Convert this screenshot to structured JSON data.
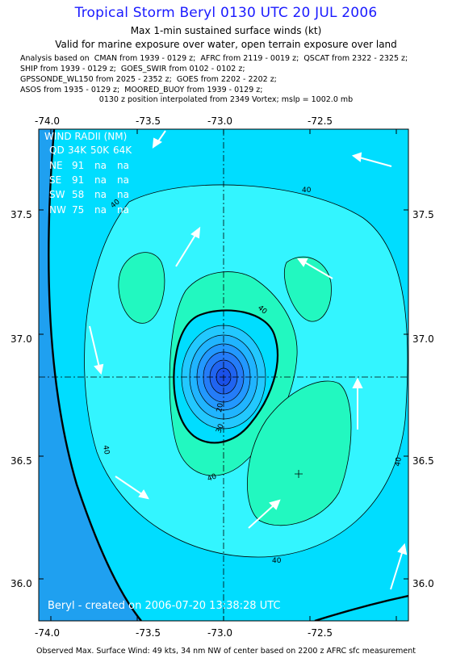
{
  "header": {
    "title": "Tropical Storm Beryl 0130 UTC 20 JUL 2006",
    "subtitle": "Max 1-min sustained surface winds (kt)",
    "valid_note": "Valid for marine exposure over water, open terrain exposure over land",
    "analysis_lines": [
      "Analysis based on  CMAN from 1939 - 0129 z;  AFRC from 2119 - 0019 z;  QSCAT from 2322 - 2325 z;",
      "SHIP from 1939 - 0129 z;  GOES_SWIR from 0102 - 0102 z;",
      "GPSSONDE_WL150 from 2025 - 2352 z;  GOES from 2202 - 2202 z;",
      "ASOS from 1935 - 0129 z;  MOORED_BUOY from 1939 - 0129 z;"
    ],
    "position_note": "0130 z position interpolated from 2349 Vortex; mslp = 1002.0 mb"
  },
  "map": {
    "x_ticks": [
      "-74.0",
      "-73.5",
      "-73.0",
      "-72.5"
    ],
    "y_ticks": [
      "37.5",
      "37.0",
      "36.5",
      "36.0"
    ],
    "wind_radii": {
      "title": "WIND RADII (NM)",
      "header": [
        "QD",
        "34K",
        "50K",
        "64K"
      ],
      "rows": [
        [
          "NE",
          "91",
          "na",
          "na"
        ],
        [
          "SE",
          "91",
          "na",
          "na"
        ],
        [
          "SW",
          "58",
          "na",
          "na"
        ],
        [
          "NW",
          "75",
          "na",
          "na"
        ]
      ]
    },
    "contour_labels": [
      "40",
      "40",
      "40",
      "40",
      "40",
      "40",
      "40",
      "20",
      "30"
    ],
    "credit": "Beryl - created on 2006-07-20 13:38:28 UTC",
    "colors": {
      "outer_blue": "#1fa0f0",
      "mid_cyan": "#00ddff",
      "pale_cyan": "#33f5ff",
      "green": "#22f8c0",
      "core_dark": "#1a50e8",
      "arrow": "#ffffff"
    }
  },
  "footer": {
    "observed": "Observed Max. Surface Wind: 49 kts, 34 nm NW of center based on 2200 z AFRC sfc measurement"
  }
}
